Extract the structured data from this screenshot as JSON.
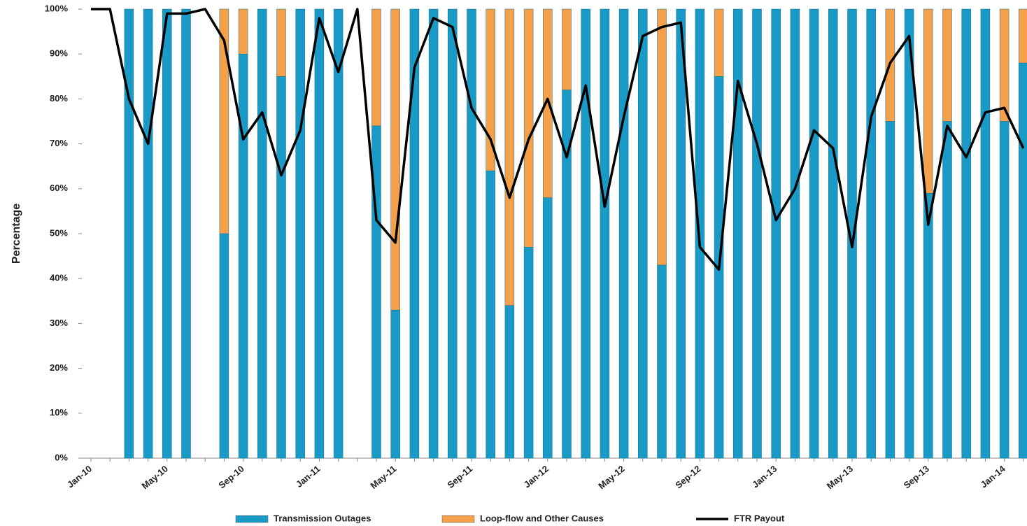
{
  "chart_data": {
    "type": "bar",
    "categories": [
      "Jan-10",
      null,
      null,
      null,
      "May-10",
      null,
      null,
      null,
      "Sep-10",
      null,
      null,
      null,
      "Jan-11",
      null,
      null,
      null,
      "May-11",
      null,
      null,
      null,
      "Sep-11",
      null,
      null,
      null,
      "Jan-12",
      null,
      null,
      null,
      "May-12",
      null,
      null,
      null,
      "Sep-12",
      null,
      null,
      null,
      "Jan-13",
      null,
      null,
      null,
      "May-13",
      null,
      null,
      null,
      "Sep-13",
      null,
      null,
      null,
      "Jan-14",
      null
    ],
    "series": [
      {
        "name": "Transmission Outages",
        "color": "#1a9bc7",
        "values": [
          null,
          null,
          100,
          100,
          100,
          100,
          null,
          50,
          90,
          100,
          85,
          100,
          100,
          100,
          null,
          74,
          33,
          100,
          100,
          100,
          100,
          64,
          34,
          47,
          58,
          82,
          100,
          100,
          100,
          100,
          43,
          100,
          100,
          85,
          100,
          100,
          100,
          100,
          100,
          100,
          100,
          100,
          75,
          100,
          59,
          75,
          100,
          100,
          75,
          88
        ]
      },
      {
        "name": "Loop-flow and Other Causes",
        "color": "#f5a04a",
        "values": [
          null,
          null,
          0,
          0,
          0,
          0,
          null,
          50,
          10,
          0,
          15,
          0,
          0,
          0,
          null,
          26,
          67,
          0,
          0,
          0,
          0,
          36,
          66,
          53,
          42,
          18,
          0,
          0,
          0,
          0,
          57,
          0,
          0,
          15,
          0,
          0,
          0,
          0,
          0,
          0,
          0,
          0,
          25,
          0,
          41,
          25,
          0,
          0,
          25,
          12
        ]
      },
      {
        "name": "FTR Payout",
        "color": "#000000",
        "kind": "line",
        "values": [
          100,
          100,
          80,
          70,
          99,
          99,
          100,
          93,
          71,
          77,
          63,
          73,
          98,
          86,
          100,
          53,
          48,
          87,
          98,
          96,
          78,
          71,
          58,
          71,
          80,
          67,
          83,
          56,
          76,
          94,
          96,
          97,
          47,
          42,
          84,
          70,
          53,
          60,
          73,
          69,
          47,
          76,
          88,
          94,
          52,
          74,
          67,
          77,
          78,
          69
        ]
      }
    ],
    "y_label": "Percentage",
    "ylim": [
      0,
      100
    ],
    "yticks": [
      {
        "value": 0,
        "label": "0%"
      },
      {
        "value": 10,
        "label": "10%"
      },
      {
        "value": 20,
        "label": "20%"
      },
      {
        "value": 30,
        "label": "30%"
      },
      {
        "value": 40,
        "label": "40%"
      },
      {
        "value": 50,
        "label": "50%"
      },
      {
        "value": 60,
        "label": "60%"
      },
      {
        "value": 70,
        "label": "70%"
      },
      {
        "value": 80,
        "label": "80%"
      },
      {
        "value": 90,
        "label": "90%"
      },
      {
        "value": 100,
        "label": "100%"
      }
    ],
    "stacked": true
  }
}
